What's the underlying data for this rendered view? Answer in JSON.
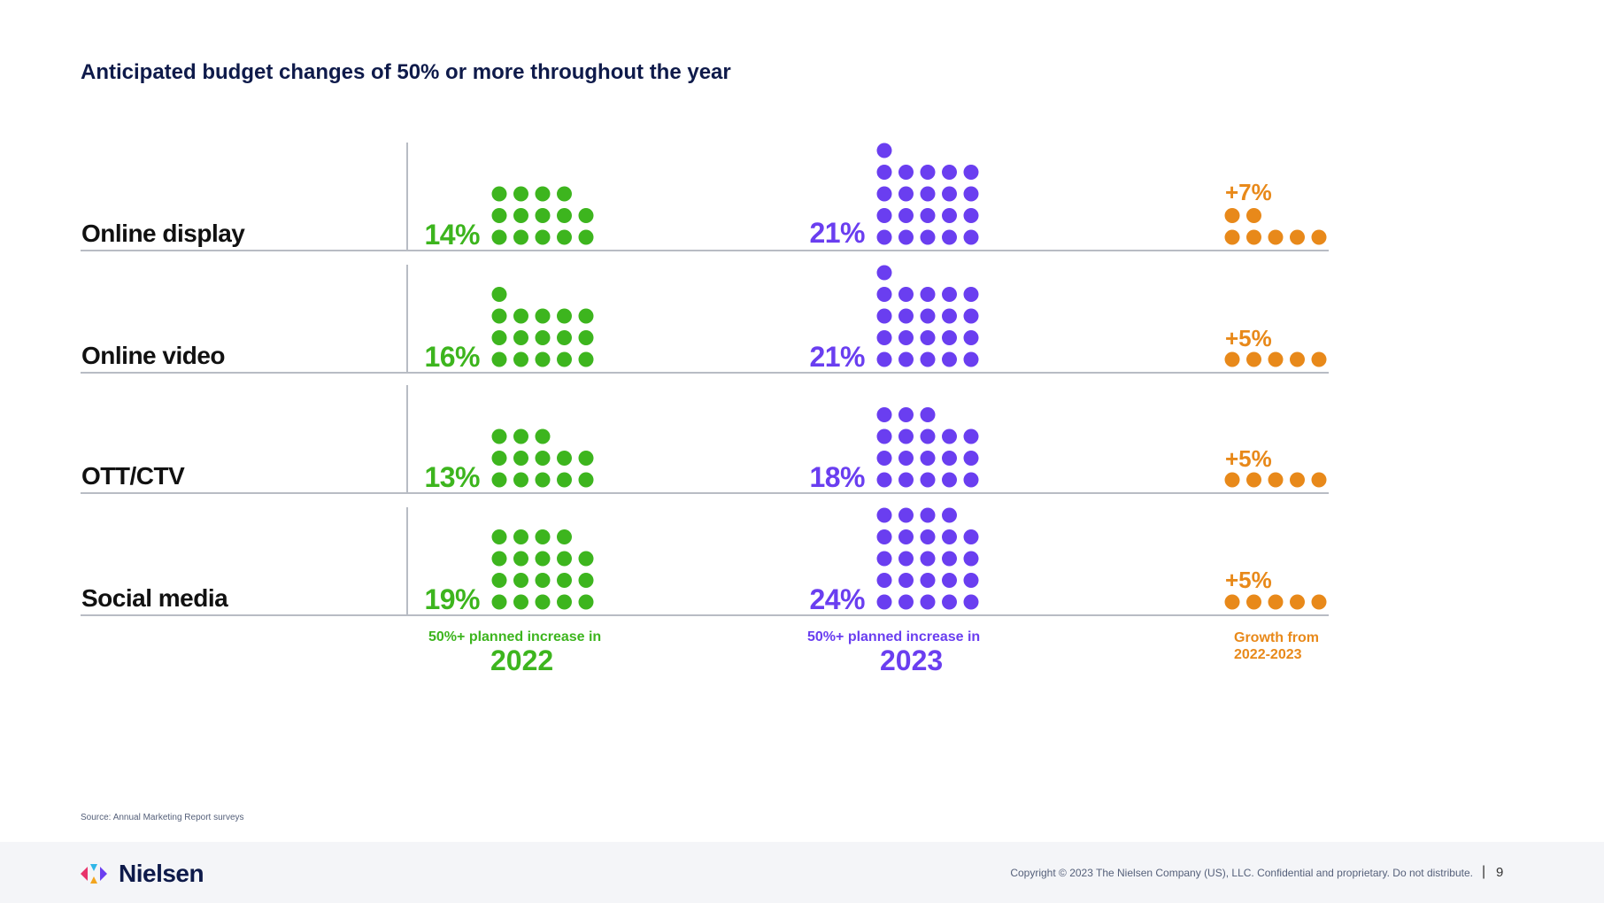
{
  "title": "Anticipated budget changes of 50% or more throughout the year",
  "chart_data": {
    "type": "pictogram",
    "title": "Anticipated budget changes of 50% or more throughout the year",
    "unit": "%",
    "dot_value": 1,
    "categories": [
      "Online display",
      "Online video",
      "OTT/CTV",
      "Social media"
    ],
    "series": [
      {
        "name": "50%+ planned increase in 2022",
        "label_top": "50%+ planned increase in",
        "label_year": "2022",
        "color": "#3db51e",
        "values": [
          14,
          16,
          13,
          19
        ]
      },
      {
        "name": "50%+ planned increase in 2023",
        "label_top": "50%+ planned increase in",
        "label_year": "2023",
        "color": "#6a3ef0",
        "values": [
          21,
          21,
          18,
          24
        ]
      },
      {
        "name": "Growth from 2022-2023",
        "label_top": "Growth from",
        "label_year": "2022-2023",
        "color": "#e8891a",
        "values": [
          7,
          5,
          5,
          5
        ]
      }
    ],
    "value_labels": {
      "y2022": [
        "14%",
        "16%",
        "13%",
        "19%"
      ],
      "y2023": [
        "21%",
        "21%",
        "18%",
        "24%"
      ],
      "growth": [
        "+7%",
        "+5%",
        "+5%",
        "+5%"
      ]
    }
  },
  "source": "Source: Annual Marketing Report surveys",
  "footer": {
    "logo_text": "Nielsen",
    "copyright": "Copyright © 2023 The Nielsen Company (US), LLC. Confidential and proprietary. Do not distribute.",
    "separator": "|",
    "page_number": "9"
  }
}
